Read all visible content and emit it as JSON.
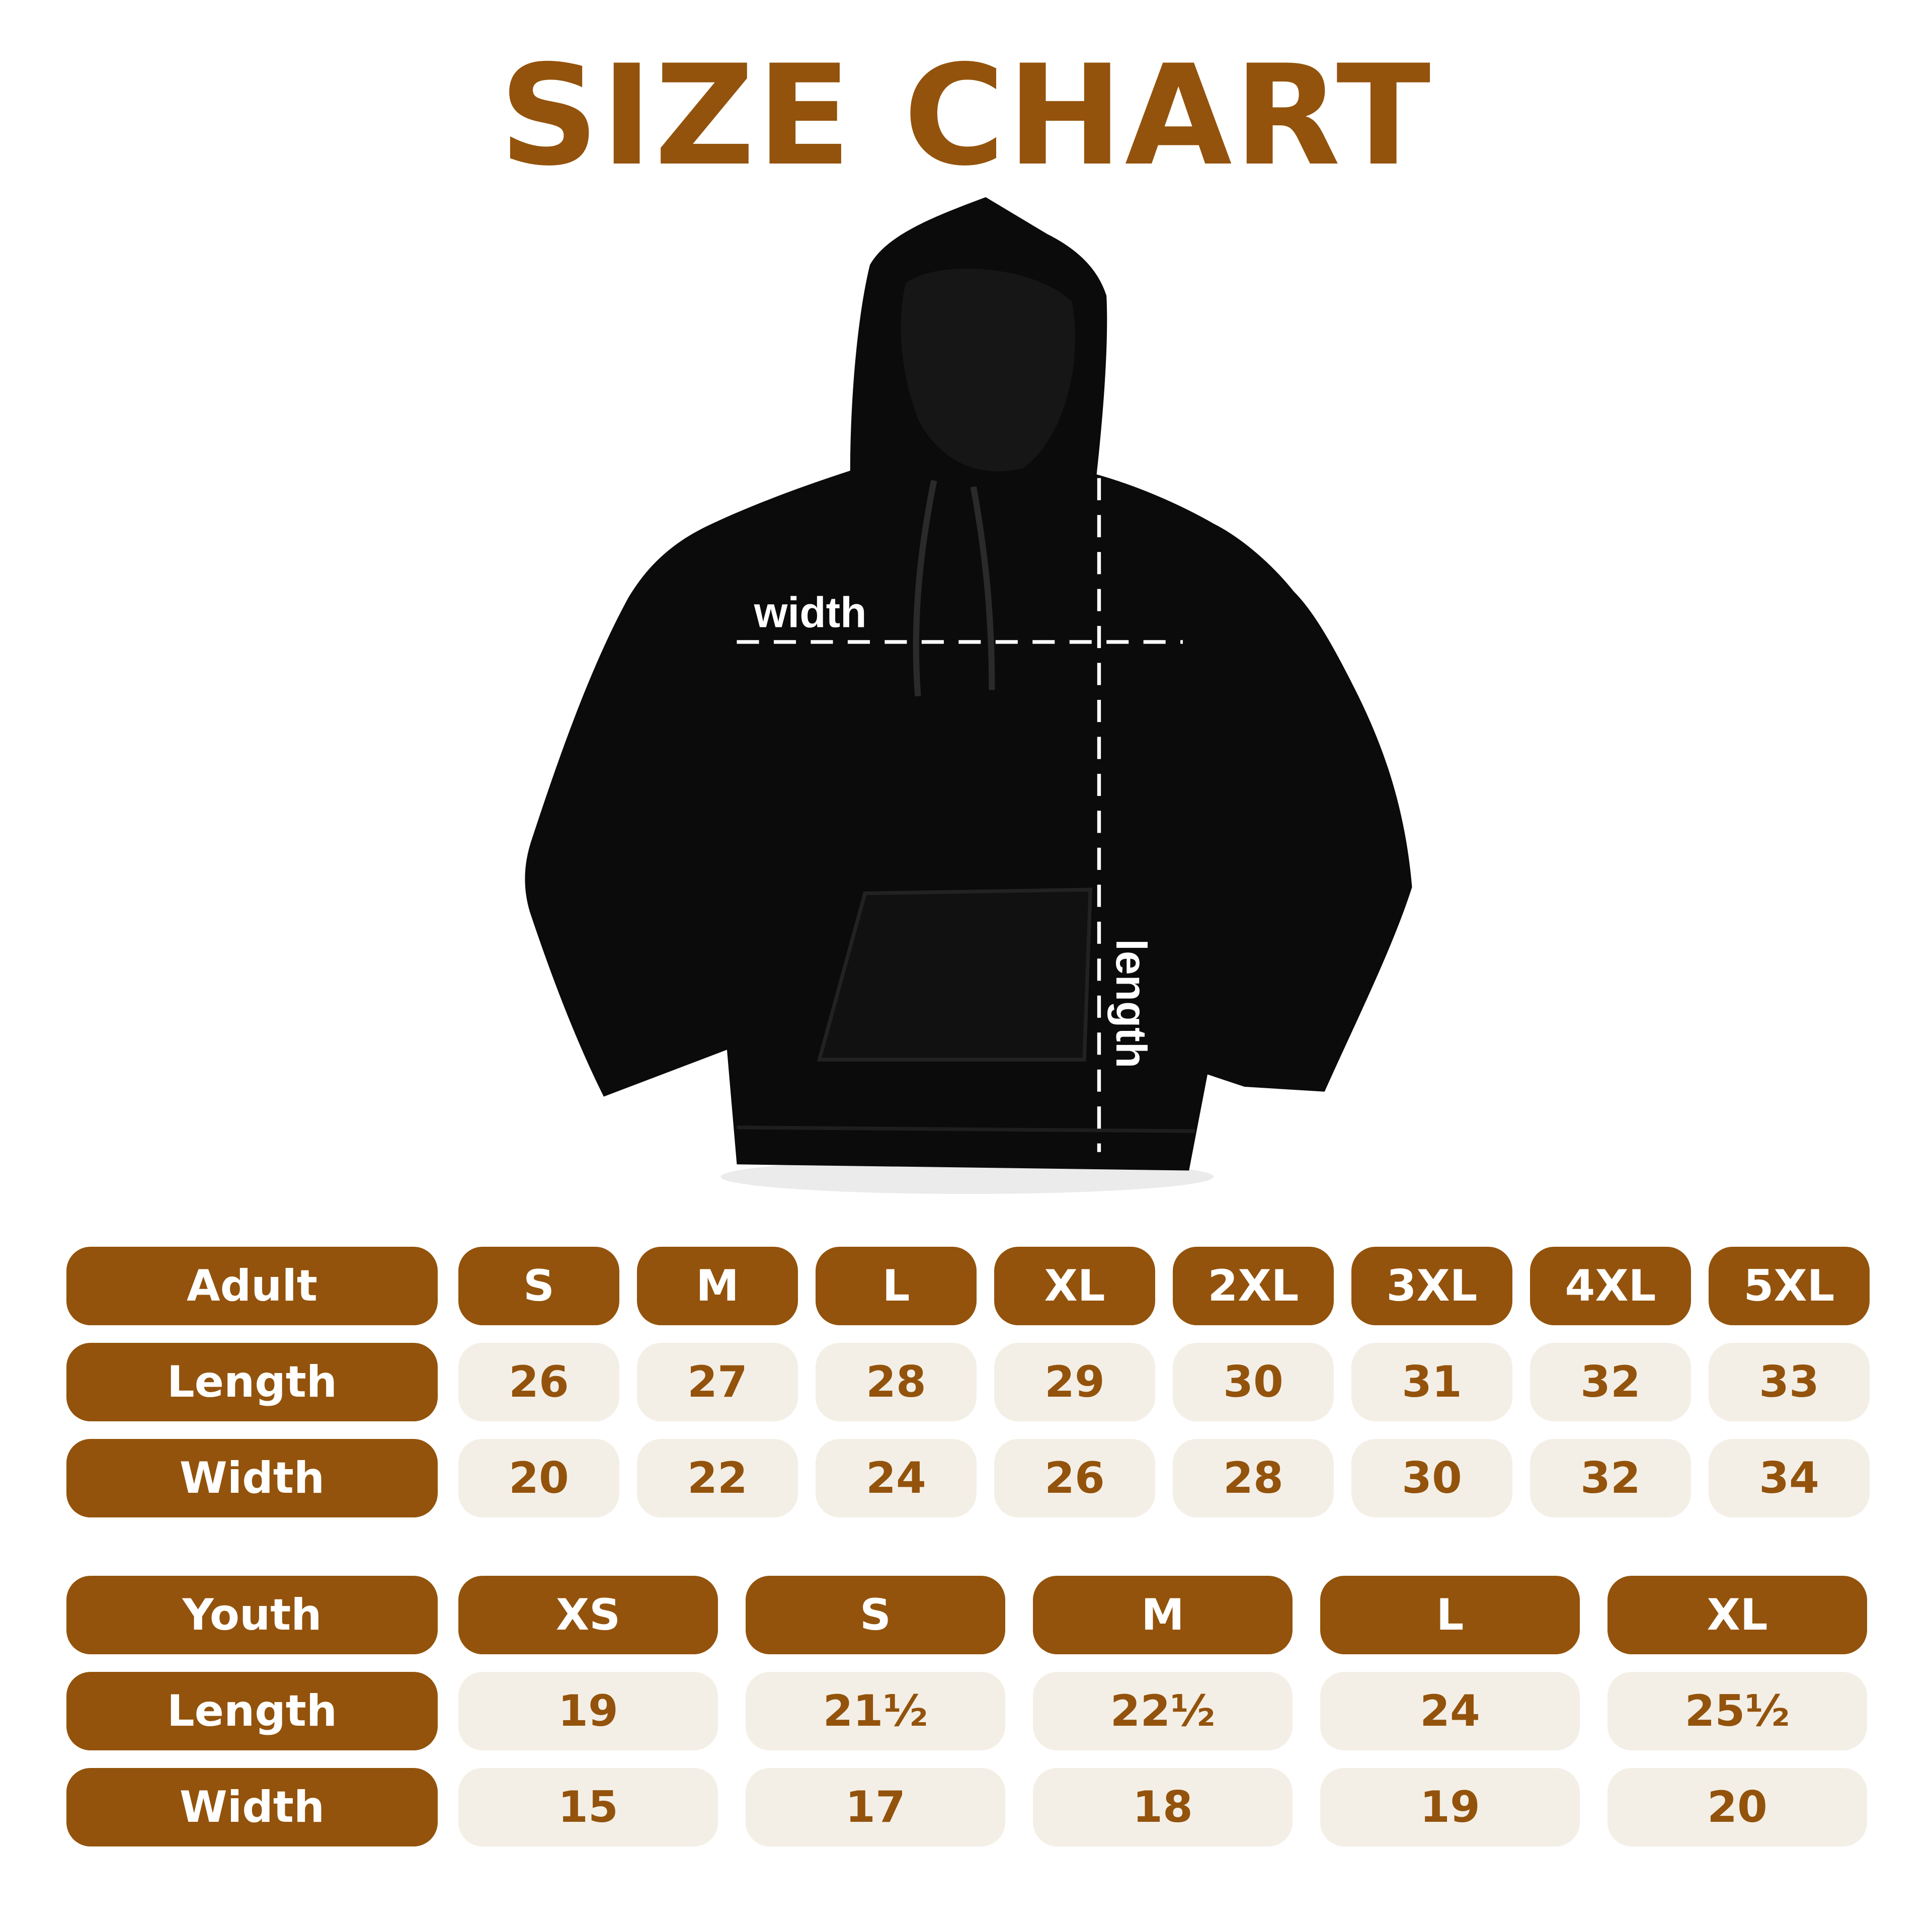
{
  "title": "SIZE CHART",
  "colors": {
    "brand": "#93530c",
    "cell_bg": "#f4efe6",
    "garment": "#0b0b0b"
  },
  "garment": {
    "type": "hoodie",
    "width_label": "width",
    "length_label": "length"
  },
  "adult": {
    "header": "Adult",
    "sizes": [
      "S",
      "M",
      "L",
      "XL",
      "2XL",
      "3XL",
      "4XL",
      "5XL"
    ],
    "rows": [
      {
        "label": "Length",
        "values": [
          "26",
          "27",
          "28",
          "29",
          "30",
          "31",
          "32",
          "33"
        ]
      },
      {
        "label": "Width",
        "values": [
          "20",
          "22",
          "24",
          "26",
          "28",
          "30",
          "32",
          "34"
        ]
      }
    ]
  },
  "youth": {
    "header": "Youth",
    "sizes": [
      "XS",
      "S",
      "M",
      "L",
      "XL"
    ],
    "rows": [
      {
        "label": "Length",
        "values": [
          "19",
          "21½",
          "22½",
          "24",
          "25½"
        ]
      },
      {
        "label": "Width",
        "values": [
          "15",
          "17",
          "18",
          "19",
          "20"
        ]
      }
    ]
  }
}
